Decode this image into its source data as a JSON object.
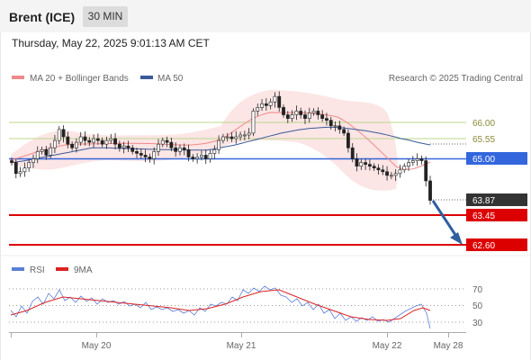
{
  "header": {
    "title": "Brent (ICE)",
    "timeframe": "30 MIN"
  },
  "datetime": "Thursday, May 22, 2025 9:01:13 AM CET",
  "legend": {
    "bollinger_label": "MA 20 + Bollinger Bands",
    "ma50_label": "MA 50",
    "credit": "Research © 2025 Trading Central"
  },
  "rsi_legend": {
    "rsi_label": "RSI",
    "ma9_label": "9MA"
  },
  "colors": {
    "bollinger": "#f08a8a",
    "ma50": "#3a5a9a",
    "current_price": "#3366dd",
    "resistance": "#b9d88a",
    "support": "#dd0000",
    "current_tag": "#333333",
    "arrow": "#2f5f9f",
    "rsi": "#5b7fd6",
    "rsi_ma": "#dd2222",
    "candle_up": "#ffffff",
    "candle_down": "#222222"
  },
  "chart_data": [
    {
      "type": "candlestick",
      "x_ticks": [
        "May 20",
        "May 21",
        "May 22",
        "May 28"
      ],
      "y_ticks": [
        "66.00",
        "65.55",
        "65.00",
        "63.87",
        "63.45",
        "62.60"
      ],
      "y_axis_prices": [
        66.0,
        65.55,
        65.0,
        63.87,
        63.45,
        62.6
      ],
      "levels": [
        {
          "label": "66.00",
          "value": 66.0,
          "kind": "resistance"
        },
        {
          "label": "65.55",
          "value": 65.55,
          "kind": "resistance"
        },
        {
          "label": "65.00",
          "value": 65.0,
          "kind": "pivot"
        },
        {
          "label": "63.87",
          "value": 63.87,
          "kind": "last"
        },
        {
          "label": "63.45",
          "value": 63.45,
          "kind": "support"
        },
        {
          "label": "62.60",
          "value": 62.6,
          "kind": "support"
        }
      ],
      "close": [
        64.9,
        64.6,
        64.65,
        64.75,
        64.9,
        65.0,
        65.2,
        65.25,
        65.1,
        65.3,
        65.5,
        65.8,
        65.6,
        65.4,
        65.3,
        65.45,
        65.6,
        65.5,
        65.45,
        65.55,
        65.5,
        65.4,
        65.5,
        65.55,
        65.4,
        65.3,
        65.35,
        65.3,
        65.2,
        65.15,
        65.1,
        65.05,
        65.0,
        65.2,
        65.4,
        65.5,
        65.45,
        65.3,
        65.2,
        65.3,
        65.25,
        65.05,
        65.0,
        65.05,
        65.1,
        65.0,
        65.15,
        65.25,
        65.5,
        65.6,
        65.6,
        65.55,
        65.6,
        65.65,
        65.65,
        65.7,
        66.3,
        66.4,
        66.5,
        66.45,
        66.55,
        66.7,
        66.4,
        66.2,
        66.1,
        66.2,
        66.3,
        66.2,
        66.1,
        66.25,
        66.3,
        66.2,
        66.1,
        66.05,
        65.9,
        65.9,
        65.8,
        65.7,
        65.3,
        65.0,
        64.8,
        64.9,
        64.85,
        64.8,
        64.75,
        64.7,
        64.65,
        64.55,
        64.55,
        64.6,
        64.7,
        64.8,
        64.9,
        64.95,
        65.0,
        64.95,
        64.4,
        63.87
      ],
      "ma50": [
        64.9,
        64.92,
        64.94,
        64.97,
        65.0,
        65.03,
        65.06,
        65.09,
        65.12,
        65.15,
        65.18,
        65.21,
        65.24,
        65.27,
        65.3,
        65.3,
        65.3,
        65.3,
        65.29,
        65.29,
        65.28,
        65.28,
        65.27,
        65.27,
        65.26,
        65.26,
        65.25,
        65.25,
        65.25,
        65.25,
        65.24,
        65.24,
        65.24,
        65.24,
        65.24,
        65.26,
        65.29,
        65.32,
        65.35,
        65.38,
        65.42,
        65.46,
        65.5,
        65.54,
        65.58,
        65.62,
        65.66,
        65.7,
        65.73,
        65.76,
        65.79,
        65.81,
        65.83,
        65.84,
        65.85,
        65.86,
        65.86,
        65.85,
        65.84,
        65.82,
        65.8,
        65.78,
        65.76,
        65.73,
        65.7,
        65.67,
        65.63,
        65.59,
        65.55,
        65.52,
        65.48,
        65.44,
        65.41,
        65.38
      ],
      "rsi_levels": [
        70,
        50,
        30
      ]
    }
  ]
}
